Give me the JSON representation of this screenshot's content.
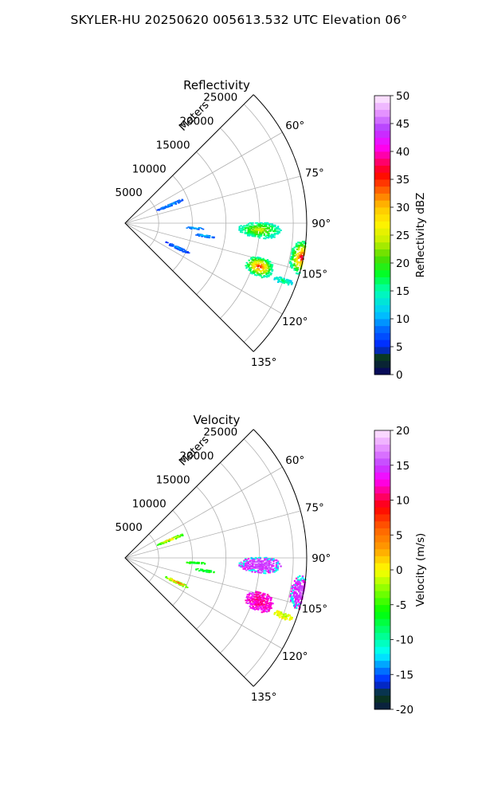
{
  "figure": {
    "title": "SKYLER-HU  20250620  005613.532 UTC Elevation 06°"
  },
  "chart_data": [
    {
      "type": "heatmap",
      "subtype": "polar-ppi-sector",
      "title": "Reflectivity",
      "range_label": "Meters",
      "range_ticks": [
        5000,
        10000,
        15000,
        20000,
        25000
      ],
      "range_max": 27000,
      "azimuth_range_deg": [
        45,
        135
      ],
      "azimuth_ticks_deg": [
        60,
        75,
        90,
        105,
        120,
        135
      ],
      "azimuth_tick_labels": [
        "60°",
        "75°",
        "90°",
        "105°",
        "120°",
        "135°"
      ],
      "grid": true,
      "colorbar": {
        "label": "Reflectivity dBZ",
        "min": 0,
        "max": 50,
        "ticks": [
          0,
          5,
          10,
          15,
          20,
          25,
          30,
          35,
          40,
          45,
          50
        ],
        "colormap": "NWS reflectivity",
        "stops": [
          {
            "v": 0,
            "c": "#08006a"
          },
          {
            "v": 3,
            "c": "#0a3a14"
          },
          {
            "v": 5,
            "c": "#0022ff"
          },
          {
            "v": 8,
            "c": "#0066ff"
          },
          {
            "v": 11,
            "c": "#00c8ff"
          },
          {
            "v": 15,
            "c": "#00ffb4"
          },
          {
            "v": 18,
            "c": "#00ff28"
          },
          {
            "v": 21,
            "c": "#50dc00"
          },
          {
            "v": 24,
            "c": "#c8f000"
          },
          {
            "v": 27,
            "c": "#fff200"
          },
          {
            "v": 30,
            "c": "#ffc400"
          },
          {
            "v": 33,
            "c": "#ff6400"
          },
          {
            "v": 36,
            "c": "#ff0000"
          },
          {
            "v": 38,
            "c": "#ff0064"
          },
          {
            "v": 41,
            "c": "#ff00ff"
          },
          {
            "v": 44,
            "c": "#b43cff"
          },
          {
            "v": 47,
            "c": "#e696ff"
          },
          {
            "v": 50,
            "c": "#fff0ff"
          }
        ]
      },
      "echoes": [
        {
          "az": 93,
          "r_range": [
            16800,
            23200
          ],
          "w": 3.5,
          "peak": 26,
          "min": 14
        },
        {
          "az": 101,
          "r_range": [
            25000,
            28500
          ],
          "w": 5.5,
          "peak": 38,
          "min": 15
        },
        {
          "az": 108,
          "r_range": [
            18800,
            23200
          ],
          "w": 4.0,
          "peak": 37,
          "min": 15
        },
        {
          "az": 110,
          "r_range": [
            23500,
            26500
          ],
          "w": 1.2,
          "peak": 18,
          "min": 12
        },
        {
          "az": 68,
          "r_range": [
            5000,
            9500
          ],
          "w": 1.5,
          "peak": 11,
          "min": 7
        },
        {
          "az": 94,
          "r_range": [
            9000,
            12000
          ],
          "w": 1.0,
          "peak": 11,
          "min": 8
        },
        {
          "az": 115,
          "r_range": [
            6500,
            10500
          ],
          "w": 1.5,
          "peak": 11,
          "min": 6
        },
        {
          "az": 99,
          "r_range": [
            10500,
            13500
          ],
          "w": 1.0,
          "peak": 12,
          "min": 8
        }
      ]
    },
    {
      "type": "heatmap",
      "subtype": "polar-ppi-sector",
      "title": "Velocity",
      "range_label": "Meters",
      "range_ticks": [
        5000,
        10000,
        15000,
        20000,
        25000
      ],
      "range_max": 27000,
      "azimuth_range_deg": [
        45,
        135
      ],
      "azimuth_ticks_deg": [
        60,
        75,
        90,
        105,
        120,
        135
      ],
      "azimuth_tick_labels": [
        "60°",
        "75°",
        "90°",
        "105°",
        "120°",
        "135°"
      ],
      "grid": true,
      "colorbar": {
        "label": "Velocity (m/s)",
        "min": -20,
        "max": 20,
        "ticks": [
          -20,
          -15,
          -10,
          -5,
          0,
          5,
          10,
          15,
          20
        ],
        "colormap": "velocity",
        "stops": [
          {
            "v": -20,
            "c": "#0a1a4a"
          },
          {
            "v": -18,
            "c": "#0a3a14"
          },
          {
            "v": -16,
            "c": "#0022ff"
          },
          {
            "v": -14,
            "c": "#0088ff"
          },
          {
            "v": -12,
            "c": "#00ffff"
          },
          {
            "v": -9,
            "c": "#00ff80"
          },
          {
            "v": -6,
            "c": "#00ff00"
          },
          {
            "v": -3,
            "c": "#80ff00"
          },
          {
            "v": 0,
            "c": "#ffff00"
          },
          {
            "v": 3,
            "c": "#ffa000"
          },
          {
            "v": 6,
            "c": "#ff6000"
          },
          {
            "v": 9,
            "c": "#ff0000"
          },
          {
            "v": 11,
            "c": "#ff0080"
          },
          {
            "v": 13,
            "c": "#ff00ff"
          },
          {
            "v": 15,
            "c": "#c040ff"
          },
          {
            "v": 17,
            "c": "#e080ff"
          },
          {
            "v": 20,
            "c": "#ffe8ff"
          }
        ]
      },
      "echoes": [
        {
          "az": 93,
          "r_range": [
            16800,
            23200
          ],
          "w": 3.5,
          "peak": 16,
          "min": 14,
          "edge": -12
        },
        {
          "az": 101,
          "r_range": [
            25000,
            28500
          ],
          "w": 5.5,
          "peak": 16,
          "min": 13,
          "edge": -12
        },
        {
          "az": 108,
          "r_range": [
            18800,
            23200
          ],
          "w": 4.0,
          "peak": 11,
          "min": 13
        },
        {
          "az": 110,
          "r_range": [
            23500,
            26500
          ],
          "w": 1.2,
          "peak": -2,
          "min": 0
        },
        {
          "az": 68,
          "r_range": [
            5000,
            9500
          ],
          "w": 1.5,
          "peak": 4,
          "min": -5
        },
        {
          "az": 94,
          "r_range": [
            9000,
            12000
          ],
          "w": 1.0,
          "peak": -7,
          "min": -5
        },
        {
          "az": 115,
          "r_range": [
            6500,
            10500
          ],
          "w": 1.5,
          "peak": 8,
          "min": -4
        },
        {
          "az": 99,
          "r_range": [
            10500,
            13500
          ],
          "w": 1.0,
          "peak": -8,
          "min": -6
        }
      ]
    }
  ]
}
